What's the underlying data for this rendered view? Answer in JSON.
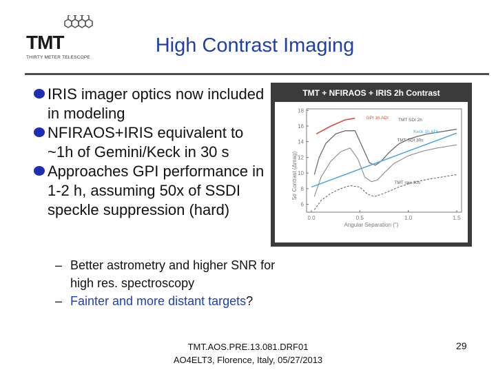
{
  "logo": {
    "text": "TMT",
    "subtitle": "THIRTY METER TELESCOPE"
  },
  "title": "High Contrast Imaging",
  "bullets": [
    "IRIS imager optics now included in modeling",
    "NFIRAOS+IRIS equivalent to ~1h of Gemini/Keck in 30 s",
    "Approaches GPI performance in 1-2 h, assuming 50x of SSDI speckle suppression (hard)"
  ],
  "subbullets": [
    {
      "text": "Better astrometry and higher SNR for high res. spectroscopy"
    },
    {
      "text_blue": "Fainter and more distant targets",
      "text_tail": "?"
    }
  ],
  "dash": "–",
  "colors": {
    "accent": "#1f3fb0",
    "bullet": "#1f2fb5",
    "chart_bg": "#3b3b3b",
    "gpi": "#d9503a",
    "keck": "#4aa6df"
  },
  "chart_data": {
    "type": "line",
    "title": "TMT + NFIRAOS + IRIS 2h Contrast",
    "xlabel": "Angular Separation (\")",
    "ylabel": "5σ Contrast (Δmag)",
    "xlim": [
      -0.05,
      1.55
    ],
    "ylim": [
      5,
      18.2
    ],
    "xticks": [
      "0.0",
      "0.5",
      "1.0",
      "1.5"
    ],
    "xtick_values": [
      0.0,
      0.5,
      1.0,
      1.5
    ],
    "yticks": [
      "6",
      "8",
      "10",
      "12",
      "14",
      "16",
      "18"
    ],
    "ytick_values": [
      6,
      8,
      10,
      12,
      14,
      16,
      18
    ],
    "series": [
      {
        "name": "GPI 1h ADI",
        "style": "red",
        "x": [
          0.05,
          0.2,
          0.35,
          0.45
        ],
        "y": [
          15.0,
          16.0,
          16.8,
          17.0
        ]
      },
      {
        "name": "TMT SDI 2h",
        "style": "gray-solid",
        "x": [
          0.03,
          0.08,
          0.15,
          0.25,
          0.35,
          0.45,
          0.52,
          0.6,
          0.66,
          0.72,
          0.8,
          0.9,
          1.0,
          1.1,
          1.2,
          1.3,
          1.4,
          1.5
        ],
        "y": [
          9.8,
          12.0,
          13.8,
          15.0,
          15.4,
          15.4,
          13.5,
          11.3,
          11.0,
          11.5,
          12.6,
          13.7,
          14.3,
          14.7,
          15.0,
          15.2,
          15.4,
          15.6
        ]
      },
      {
        "name": "Keck 1h ADI",
        "style": "blue",
        "x": [
          0.0,
          1.5
        ],
        "y": [
          8.2,
          15.1
        ]
      },
      {
        "name": "TMT SDI 30s",
        "style": "gray-light",
        "x": [
          0.03,
          0.1,
          0.2,
          0.3,
          0.4,
          0.48,
          0.55,
          0.62,
          0.68,
          0.75,
          0.85,
          1.0,
          1.15,
          1.3,
          1.4,
          1.5
        ],
        "y": [
          7.0,
          9.5,
          11.5,
          12.7,
          13.2,
          11.8,
          9.5,
          8.9,
          9.1,
          10.0,
          11.2,
          12.2,
          12.8,
          13.2,
          13.4,
          13.6
        ]
      },
      {
        "name": "TMT raw 30s",
        "style": "gray-dashed",
        "x": [
          0.03,
          0.1,
          0.2,
          0.3,
          0.4,
          0.5,
          0.58,
          0.65,
          0.75,
          0.9,
          1.05,
          1.2,
          1.35,
          1.5
        ],
        "y": [
          5.3,
          6.5,
          7.4,
          8.0,
          8.4,
          8.2,
          7.3,
          7.0,
          7.4,
          8.2,
          8.8,
          9.2,
          9.5,
          9.8
        ]
      }
    ],
    "labels": [
      {
        "text": "GPI 1h ADI",
        "x": 0.68,
        "y": 16.9,
        "color": "#d9503a"
      },
      {
        "text": "TMT SDI 2h",
        "x": 1.02,
        "y": 16.6,
        "color": "#dddddd"
      },
      {
        "text": "Keck 1h ADI",
        "x": 1.18,
        "y": 15.1,
        "color": "#4aa6df"
      },
      {
        "text": "TMT SDI 30s",
        "x": 1.02,
        "y": 14.0,
        "color": "#dddddd"
      },
      {
        "text": "TMT raw 30s",
        "x": 0.99,
        "y": 8.6,
        "color": "#dddddd"
      }
    ]
  },
  "footer": {
    "line1": "TMT.AOS.PRE.13.081.DRF01",
    "line2": "AO4ELT3, Florence, Italy, 05/27/2013"
  },
  "page_number": "29"
}
